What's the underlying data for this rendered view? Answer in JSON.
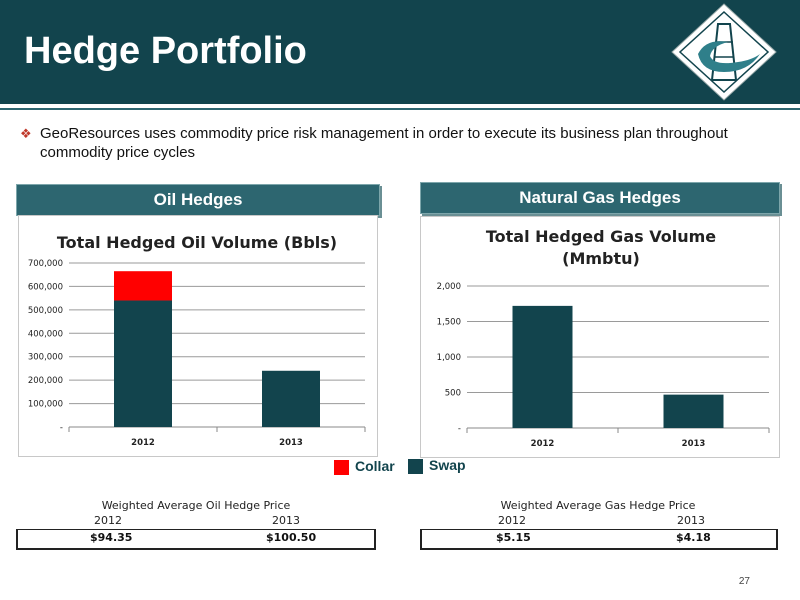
{
  "header": {
    "title": "Hedge Portfolio"
  },
  "bullet": {
    "text": "GeoResources uses commodity price risk management in order to execute its business plan throughout commodity price cycles"
  },
  "sections": {
    "oil_label": "Oil Hedges",
    "gas_label": "Natural Gas Hedges"
  },
  "legend": {
    "collar": {
      "label": "Collar",
      "color": "#ff0000"
    },
    "swap": {
      "label": "Swap",
      "color": "#12444d"
    }
  },
  "oil_prices": {
    "title": "Weighted Average Oil Hedge Price",
    "years": [
      "2012",
      "2013"
    ],
    "values": [
      "$94.35",
      "$100.50"
    ]
  },
  "gas_prices": {
    "title": "Weighted Average Gas Hedge Price",
    "years": [
      "2012",
      "2013"
    ],
    "values": [
      "$5.15",
      "$4.18"
    ]
  },
  "page_number": "27",
  "chart_data": [
    {
      "type": "bar",
      "stacked": true,
      "title": "Total Hedged Oil Volume (Bbls)",
      "categories": [
        "2012",
        "2013"
      ],
      "series": [
        {
          "name": "Swap",
          "color": "#12444d",
          "values": [
            540000,
            240000
          ]
        },
        {
          "name": "Collar",
          "color": "#ff0000",
          "values": [
            125000,
            0
          ]
        }
      ],
      "ylim": [
        0,
        700000
      ],
      "yticks": [
        0,
        100000,
        200000,
        300000,
        400000,
        500000,
        600000,
        700000
      ],
      "ytick_labels": [
        "-",
        "100,000",
        "200,000",
        "300,000",
        "400,000",
        "500,000",
        "600,000",
        "700,000"
      ],
      "grid": true
    },
    {
      "type": "bar",
      "title": "Total Hedged Gas Volume",
      "subtitle": "(Mmbtu)",
      "categories": [
        "2012",
        "2013"
      ],
      "series": [
        {
          "name": "Swap",
          "color": "#12444d",
          "values": [
            1720,
            470
          ]
        }
      ],
      "ylim": [
        0,
        2000
      ],
      "yticks": [
        0,
        500,
        1000,
        1500,
        2000
      ],
      "ytick_labels": [
        "-",
        "500",
        "1,000",
        "1,500",
        "2,000"
      ],
      "grid": true
    }
  ]
}
